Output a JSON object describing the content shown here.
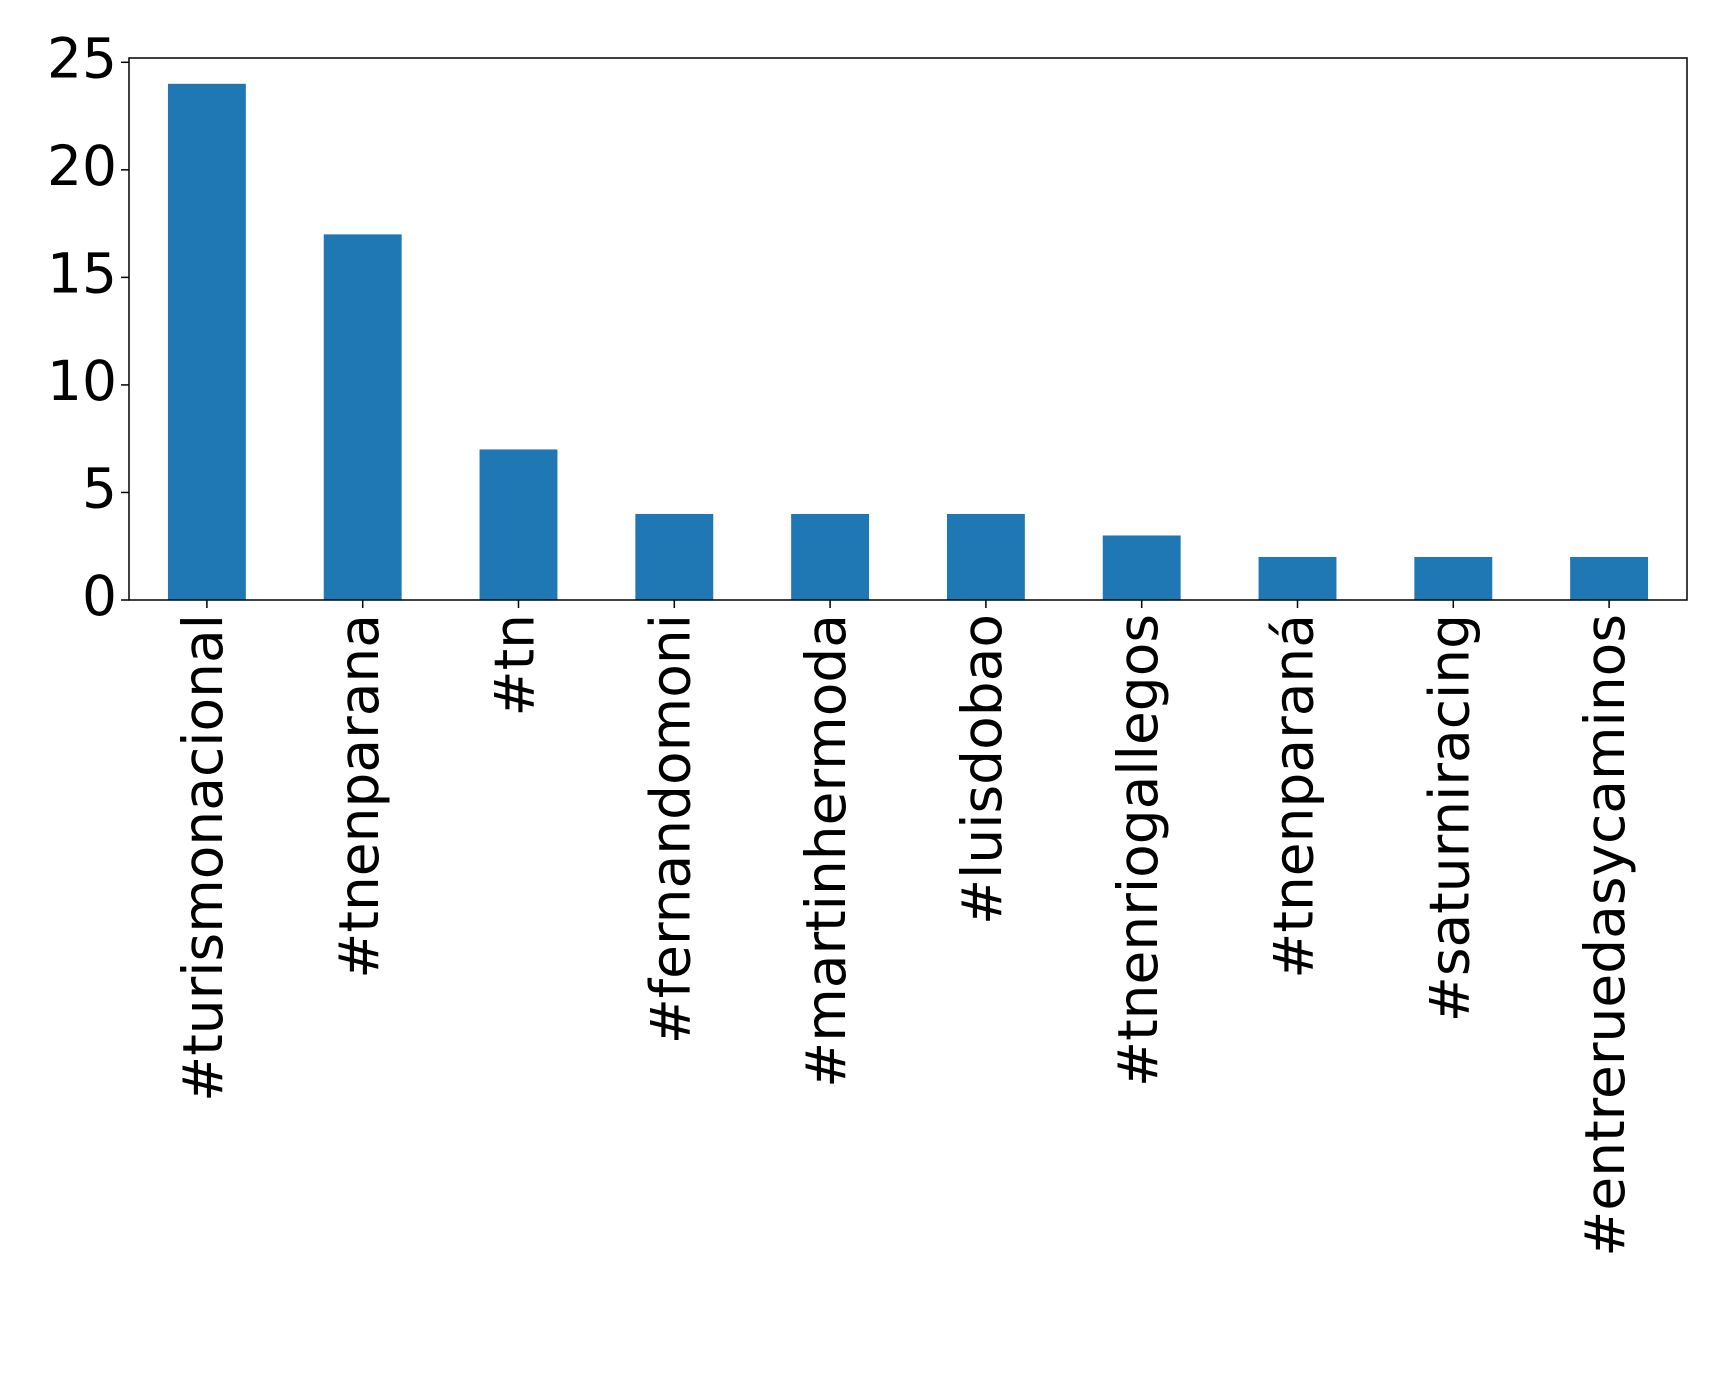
{
  "chart_data": {
    "type": "bar",
    "categories": [
      "#turismonacional",
      "#tnenparana",
      "#tn",
      "#fernandomoni",
      "#martinhermoda",
      "#luisdobao",
      "#tnenriogallegos",
      "#tnenparaná",
      "#saturniracing",
      "#entreruedasycaminos"
    ],
    "values": [
      24,
      17,
      7,
      4,
      4,
      4,
      3,
      2,
      2,
      2
    ],
    "color": "#1f77b4",
    "ylim": [
      0,
      25.2
    ],
    "yticks": [
      0,
      5,
      10,
      15,
      20,
      25
    ],
    "grid": false
  }
}
